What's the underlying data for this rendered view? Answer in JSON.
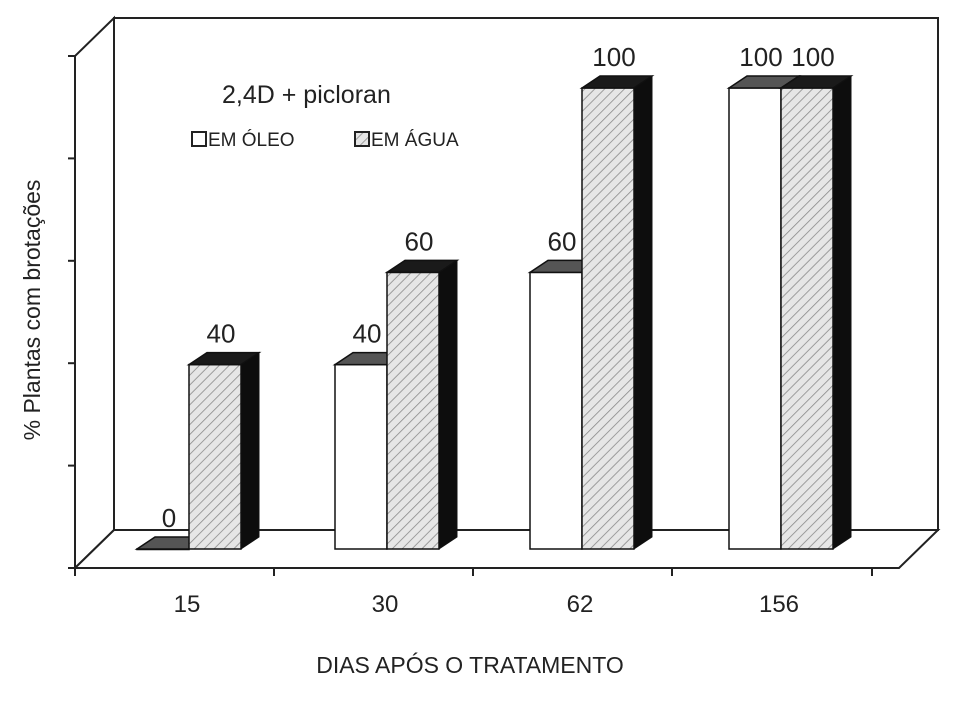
{
  "chart_data": {
    "type": "bar",
    "title": "",
    "legend_title": "2,4D + picloran",
    "legend_position": "top-left",
    "xlabel": "DIAS APÓS O TRATAMENTO",
    "ylabel": "% Plantas com brotações",
    "categories": [
      "15",
      "30",
      "62",
      "156"
    ],
    "series": [
      {
        "name": "EM ÓLEO",
        "values": [
          0,
          40,
          60,
          100
        ],
        "pattern": "solid",
        "color": "#ffffff"
      },
      {
        "name": "EM ÁGUA",
        "values": [
          40,
          60,
          100,
          100
        ],
        "pattern": "hatched",
        "color": "#e4e4e4"
      }
    ],
    "data_labels": [
      [
        "0",
        "40",
        "60",
        "100"
      ],
      [
        "40",
        "60",
        "100",
        "100"
      ]
    ],
    "ylim": [
      0,
      100
    ],
    "ytick_count": 5,
    "grid": false,
    "style": "3d"
  }
}
